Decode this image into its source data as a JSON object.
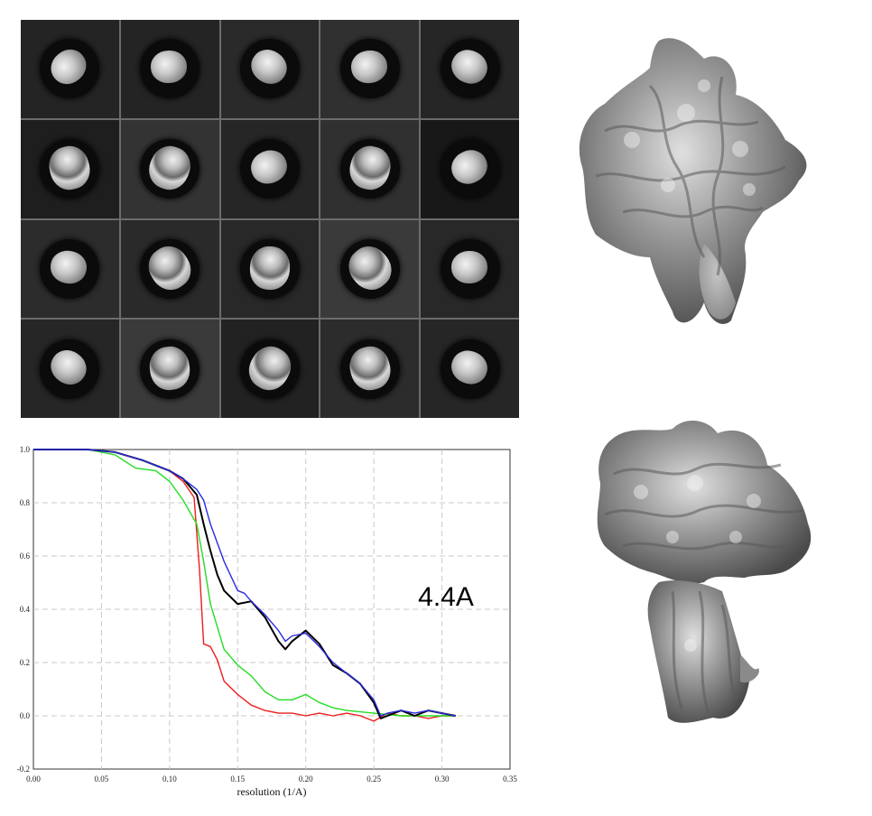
{
  "class_averages": {
    "rows": 4,
    "cols": 5,
    "cells": [
      {
        "bg": "#242424",
        "view": "top"
      },
      {
        "bg": "#242424",
        "view": "top"
      },
      {
        "bg": "#2a2a2a",
        "view": "top"
      },
      {
        "bg": "#303030",
        "view": "top"
      },
      {
        "bg": "#262626",
        "view": "top"
      },
      {
        "bg": "#1e1e1e",
        "view": "side"
      },
      {
        "bg": "#333333",
        "view": "side"
      },
      {
        "bg": "#262626",
        "view": "top"
      },
      {
        "bg": "#303030",
        "view": "side"
      },
      {
        "bg": "#181818",
        "view": "top"
      },
      {
        "bg": "#2c2c2c",
        "view": "top"
      },
      {
        "bg": "#2a2a2a",
        "view": "side"
      },
      {
        "bg": "#282828",
        "view": "side"
      },
      {
        "bg": "#3a3a3a",
        "view": "side"
      },
      {
        "bg": "#282828",
        "view": "top"
      },
      {
        "bg": "#262626",
        "view": "top"
      },
      {
        "bg": "#3a3a3a",
        "view": "side"
      },
      {
        "bg": "#222222",
        "view": "side"
      },
      {
        "bg": "#2c2c2c",
        "view": "side"
      },
      {
        "bg": "#262626",
        "view": "top"
      }
    ]
  },
  "chart_data": {
    "type": "line",
    "xlabel": "resolution (1/A)",
    "ylabel": "",
    "xlim": [
      0.0,
      0.35
    ],
    "ylim": [
      -0.2,
      1.0
    ],
    "xticks": [
      "0.00",
      "0.05",
      "0.10",
      "0.15",
      "0.20",
      "0.25",
      "0.30",
      "0.35"
    ],
    "yticks": [
      "-0.2",
      "0.0",
      "0.2",
      "0.4",
      "0.6",
      "0.8",
      "1.0"
    ],
    "grid": true,
    "annotation": "4.4A",
    "series": [
      {
        "color": "#2a2ae0",
        "x": [
          0,
          0.04,
          0.06,
          0.08,
          0.1,
          0.11,
          0.12,
          0.125,
          0.13,
          0.14,
          0.15,
          0.155,
          0.16,
          0.17,
          0.18,
          0.185,
          0.19,
          0.2,
          0.21,
          0.22,
          0.23,
          0.24,
          0.25,
          0.255,
          0.26,
          0.27,
          0.28,
          0.29,
          0.3,
          0.31
        ],
        "y": [
          1.0,
          1.0,
          0.99,
          0.96,
          0.92,
          0.89,
          0.85,
          0.81,
          0.72,
          0.58,
          0.47,
          0.46,
          0.43,
          0.38,
          0.32,
          0.28,
          0.3,
          0.31,
          0.26,
          0.2,
          0.16,
          0.12,
          0.06,
          0.0,
          0.01,
          0.02,
          0.01,
          0.02,
          0.01,
          0.0
        ]
      },
      {
        "color": "#000000",
        "x": [
          0,
          0.04,
          0.06,
          0.08,
          0.1,
          0.11,
          0.12,
          0.125,
          0.13,
          0.135,
          0.14,
          0.15,
          0.16,
          0.17,
          0.18,
          0.185,
          0.19,
          0.2,
          0.21,
          0.22,
          0.23,
          0.24,
          0.25,
          0.255,
          0.26,
          0.27,
          0.28,
          0.29,
          0.3,
          0.31
        ],
        "y": [
          1.0,
          1.0,
          0.99,
          0.96,
          0.92,
          0.89,
          0.83,
          0.72,
          0.62,
          0.53,
          0.47,
          0.42,
          0.43,
          0.37,
          0.28,
          0.25,
          0.28,
          0.32,
          0.27,
          0.19,
          0.16,
          0.12,
          0.05,
          -0.01,
          0.0,
          0.02,
          0.0,
          0.02,
          0.01,
          0.0
        ]
      },
      {
        "color": "#22dd22",
        "x": [
          0,
          0.04,
          0.06,
          0.075,
          0.09,
          0.1,
          0.11,
          0.12,
          0.125,
          0.13,
          0.14,
          0.15,
          0.16,
          0.17,
          0.18,
          0.19,
          0.2,
          0.21,
          0.22,
          0.23,
          0.25,
          0.27,
          0.29,
          0.31
        ],
        "y": [
          1.0,
          1.0,
          0.98,
          0.93,
          0.92,
          0.88,
          0.81,
          0.72,
          0.58,
          0.42,
          0.25,
          0.19,
          0.15,
          0.09,
          0.06,
          0.06,
          0.08,
          0.05,
          0.03,
          0.02,
          0.01,
          0.0,
          0.0,
          0.0
        ]
      },
      {
        "color": "#ee1c1c",
        "x": [
          0,
          0.04,
          0.06,
          0.08,
          0.1,
          0.11,
          0.118,
          0.122,
          0.125,
          0.13,
          0.135,
          0.14,
          0.15,
          0.16,
          0.17,
          0.18,
          0.19,
          0.2,
          0.21,
          0.22,
          0.23,
          0.24,
          0.25,
          0.26,
          0.27,
          0.28,
          0.29,
          0.3,
          0.31
        ],
        "y": [
          1.0,
          1.0,
          0.99,
          0.96,
          0.92,
          0.88,
          0.82,
          0.55,
          0.27,
          0.26,
          0.21,
          0.13,
          0.08,
          0.04,
          0.02,
          0.01,
          0.01,
          0.0,
          0.01,
          0.0,
          0.01,
          0.0,
          -0.02,
          0.01,
          0.0,
          0.0,
          -0.01,
          0.0,
          0.0
        ]
      }
    ]
  },
  "density_maps": {
    "top_view": "density-map",
    "bottom_view": "density-map"
  }
}
